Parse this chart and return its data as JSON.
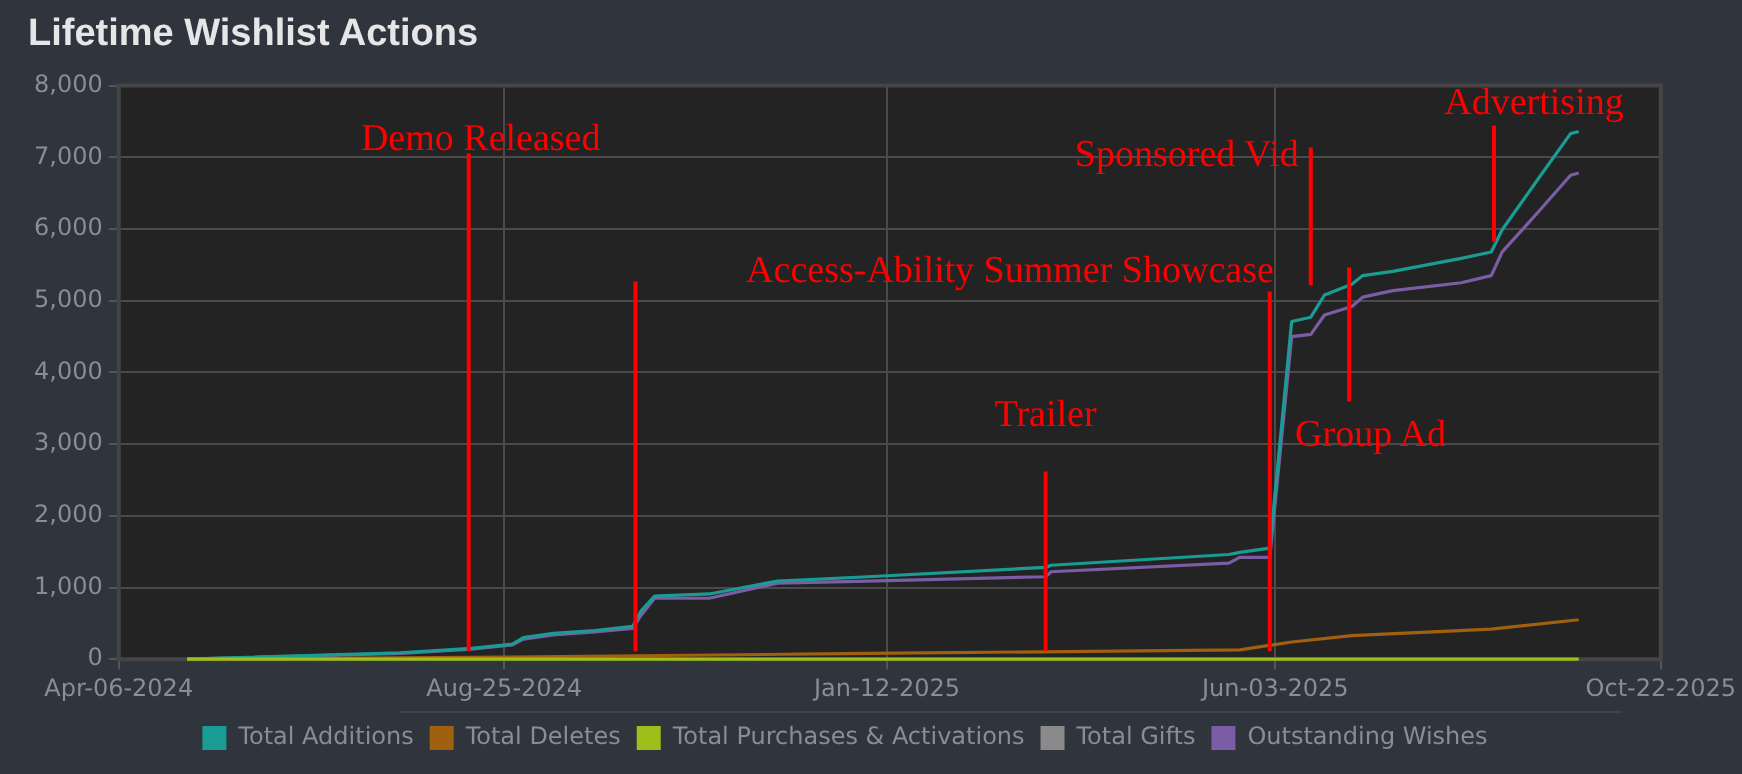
{
  "chart_data": {
    "type": "line",
    "title": "Lifetime Wishlist Actions",
    "grid": true,
    "legend": "bottom",
    "marker": "none",
    "line_style": "solid",
    "xlim": [
      "2024-04-06",
      "2025-10-22"
    ],
    "xticks": [
      {
        "value": "2024-04-06",
        "label": "Apr-06-2024"
      },
      {
        "value": "2024-08-25",
        "label": "Aug-25-2024"
      },
      {
        "value": "2025-01-12",
        "label": "Jan-12-2025"
      },
      {
        "value": "2025-06-03",
        "label": "Jun-03-2025"
      },
      {
        "value": "2025-10-22",
        "label": "Oct-22-2025"
      }
    ],
    "ylim": [
      0,
      8000
    ],
    "yticks": [
      0,
      {
        "value": 1000,
        "label": "1,000"
      },
      {
        "value": 2000,
        "label": "2,000"
      },
      {
        "value": 3000,
        "label": "3,000"
      },
      {
        "value": 4000,
        "label": "4,000"
      },
      {
        "value": 5000,
        "label": "5,000"
      },
      {
        "value": 6000,
        "label": "6,000"
      },
      {
        "value": 7000,
        "label": "7,000"
      },
      {
        "value": 8000,
        "label": "8,000"
      }
    ],
    "series": [
      {
        "name": "Total Additions",
        "color": "#1a9c94",
        "x": [
          "2024-05-01",
          "2024-07-18",
          "2024-08-13",
          "2024-08-28",
          "2024-09-01",
          "2024-09-12",
          "2024-09-27",
          "2024-10-11",
          "2024-10-14",
          "2024-10-19",
          "2024-11-08",
          "2024-12-03",
          "2025-01-05",
          "2025-03-11",
          "2025-03-13",
          "2025-05-17",
          "2025-05-21",
          "2025-06-01",
          "2025-06-09",
          "2025-06-16",
          "2025-06-21",
          "2025-07-01",
          "2025-07-05",
          "2025-07-16",
          "2025-08-10",
          "2025-08-21",
          "2025-08-25",
          "2025-09-07",
          "2025-09-19",
          "2025-09-22"
        ],
        "values": [
          0,
          90,
          150,
          210,
          300,
          360,
          400,
          460,
          670,
          880,
          910,
          1090,
          1150,
          1280,
          1310,
          1460,
          1490,
          1550,
          4710,
          4770,
          5080,
          5230,
          5350,
          5410,
          5590,
          5680,
          5990,
          6690,
          7330,
          7360
        ]
      },
      {
        "name": "Total Deletes",
        "color": "#a0600f",
        "x": [
          "2024-05-01",
          "2024-08-25",
          "2025-01-05",
          "2025-05-21",
          "2025-06-09",
          "2025-07-01",
          "2025-08-21",
          "2025-09-22"
        ],
        "values": [
          0,
          30,
          80,
          130,
          240,
          330,
          420,
          550
        ]
      },
      {
        "name": "Total Purchases & Activations",
        "color": "#9cbf1a",
        "x": [
          "2024-05-01",
          "2025-09-22"
        ],
        "values": [
          0,
          0
        ]
      },
      {
        "name": "Total Gifts",
        "color": "#8a8a8a"
      },
      {
        "name": "Outstanding Wishes",
        "color": "#7a5da5",
        "x": [
          "2024-05-01",
          "2024-07-18",
          "2024-08-13",
          "2024-08-28",
          "2024-09-01",
          "2024-09-12",
          "2024-09-27",
          "2024-10-11",
          "2024-10-14",
          "2024-10-19",
          "2024-11-08",
          "2024-12-03",
          "2025-01-05",
          "2025-03-11",
          "2025-03-13",
          "2025-05-17",
          "2025-05-21",
          "2025-06-01",
          "2025-06-09",
          "2025-06-16",
          "2025-06-21",
          "2025-07-01",
          "2025-07-05",
          "2025-07-16",
          "2025-08-10",
          "2025-08-21",
          "2025-08-25",
          "2025-09-07",
          "2025-09-19",
          "2025-09-22"
        ],
        "values": [
          0,
          80,
          140,
          200,
          280,
          340,
          380,
          430,
          610,
          850,
          850,
          1060,
          1090,
          1150,
          1220,
          1340,
          1420,
          1420,
          4500,
          4530,
          4800,
          4920,
          5050,
          5140,
          5250,
          5350,
          5680,
          6230,
          6750,
          6780
        ]
      }
    ],
    "ref_lines": [
      {
        "axis": "x",
        "value": "2024-08-12",
        "label": "Demo Released",
        "color": "#ff0000"
      },
      {
        "axis": "x",
        "value": "2024-10-12",
        "color": "#ff0000"
      },
      {
        "axis": "x",
        "value": "2025-03-11",
        "label": "Trailer",
        "color": "#ff0000"
      },
      {
        "axis": "x",
        "value": "2025-06-01",
        "label": "Access-Ability Summer Showcase",
        "color": "#ff0000"
      },
      {
        "axis": "x",
        "value": "2025-06-16",
        "label": "Sponsored Vid",
        "color": "#ff0000"
      },
      {
        "axis": "x",
        "value": "2025-06-30",
        "label": "Group Ad",
        "color": "#ff0000"
      },
      {
        "axis": "x",
        "value": "2025-08-22",
        "label": "Advertising",
        "color": "#ff0000"
      }
    ]
  }
}
